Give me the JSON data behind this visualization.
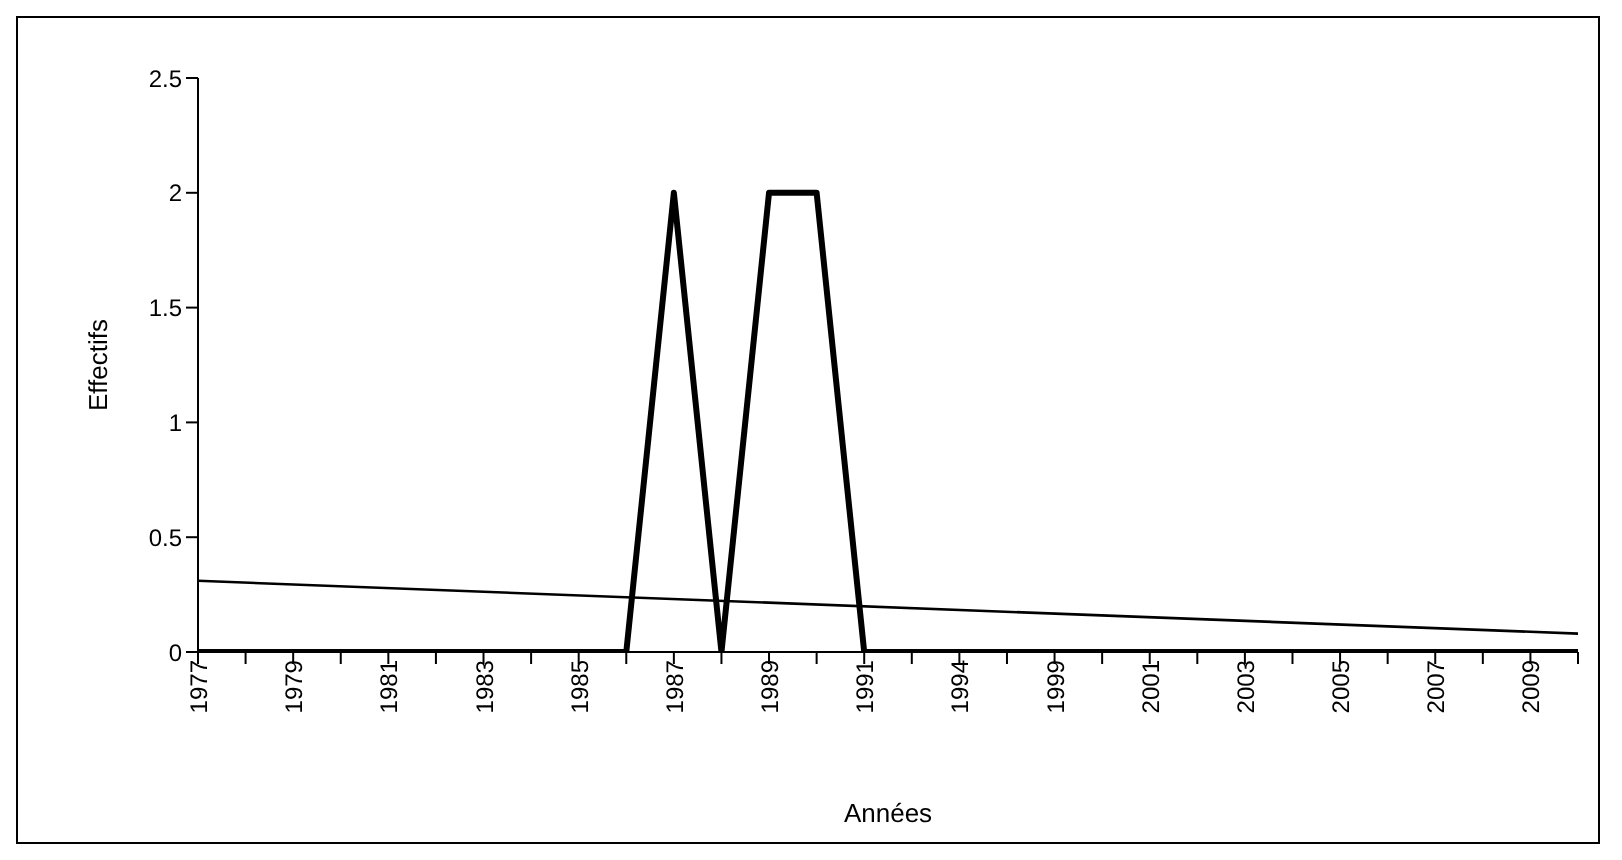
{
  "chart_data": {
    "type": "line",
    "xlabel": "Années",
    "ylabel": "Effectifs",
    "categories": [
      "1977",
      null,
      "1979",
      null,
      "1981",
      null,
      "1983",
      null,
      "1985",
      null,
      "1987",
      null,
      "1989",
      null,
      "1991",
      null,
      "1994",
      null,
      "1999",
      null,
      "2001",
      null,
      "2003",
      null,
      "2005",
      null,
      "2007",
      null,
      "2009",
      null
    ],
    "series": [
      {
        "color": "#000000",
        "values": [
          0,
          0,
          0,
          0,
          0,
          0,
          0,
          0,
          0,
          0,
          2,
          0,
          2,
          2,
          0,
          0,
          0,
          0,
          0,
          0,
          0,
          0,
          0,
          0,
          0,
          0,
          0,
          0,
          0,
          0
        ]
      },
      {
        "type": "line",
        "color": "#000000",
        "values": [
          0.31,
          null,
          null,
          null,
          null,
          null,
          null,
          null,
          null,
          null,
          null,
          null,
          null,
          null,
          null,
          null,
          null,
          null,
          null,
          null,
          null,
          null,
          null,
          null,
          null,
          null,
          null,
          null,
          null,
          0.08
        ]
      }
    ],
    "ylim": [
      0,
      2.5
    ],
    "yticks": [
      0,
      0.5,
      1,
      1.5,
      2,
      2.5
    ],
    "grid": false,
    "legend": false,
    "marker": "none",
    "line_style": "solid"
  }
}
